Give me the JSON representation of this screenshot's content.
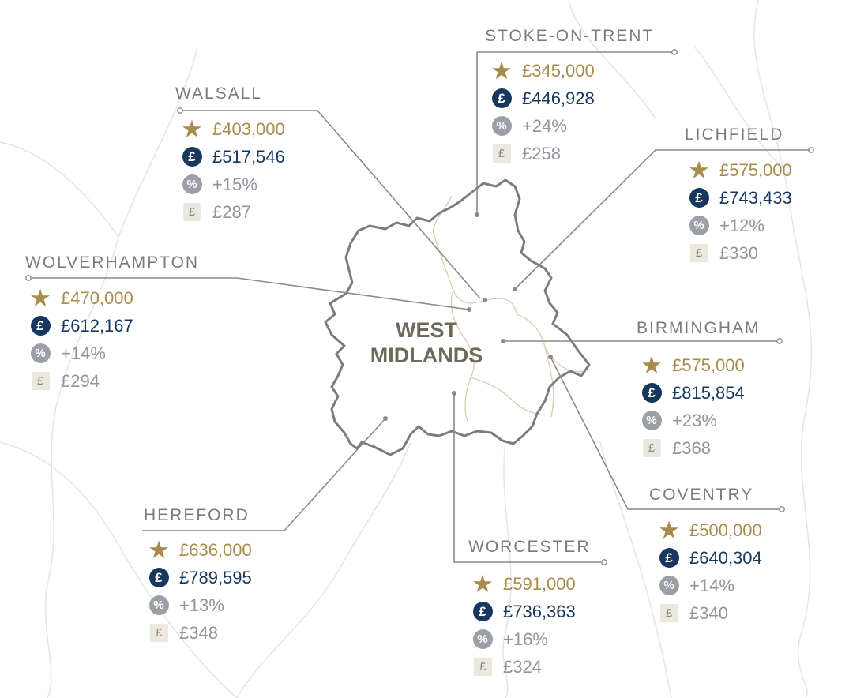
{
  "region": {
    "title_line1": "WEST",
    "title_line2": "MIDLANDS"
  },
  "colors": {
    "gold": "#a98c4c",
    "navy": "#17375e",
    "grey": "#9aa0a6",
    "border": "#7c7c7c",
    "inner_border": "#d8ccae",
    "leader_line": "#8c8a83",
    "background_map": "#e7e9ec"
  },
  "icons": {
    "star": "star-icon",
    "pound": "pound-circle-icon",
    "percent": "percent-circle-icon",
    "pound_square": "pound-square-icon"
  },
  "cities": [
    {
      "name": "STOKE-ON-TRENT",
      "star": "£345,000",
      "pound": "£446,928",
      "percent": "+24%",
      "sq": "£258"
    },
    {
      "name": "WALSALL",
      "star": "£403,000",
      "pound": "£517,546",
      "percent": "+15%",
      "sq": "£287"
    },
    {
      "name": "LICHFIELD",
      "star": "£575,000",
      "pound": "£743,433",
      "percent": "+12%",
      "sq": "£330"
    },
    {
      "name": "WOLVERHAMPTON",
      "star": "£470,000",
      "pound": "£612,167",
      "percent": "+14%",
      "sq": "£294"
    },
    {
      "name": "BIRMINGHAM",
      "star": "£575,000",
      "pound": "£815,854",
      "percent": "+23%",
      "sq": "£368"
    },
    {
      "name": "HEREFORD",
      "star": "£636,000",
      "pound": "£789,595",
      "percent": "+13%",
      "sq": "£348"
    },
    {
      "name": "WORCESTER",
      "star": "£591,000",
      "pound": "£736,363",
      "percent": "+16%",
      "sq": "£324"
    },
    {
      "name": "COVENTRY",
      "star": "£500,000",
      "pound": "£640,304",
      "percent": "+14%",
      "sq": "£340"
    }
  ]
}
